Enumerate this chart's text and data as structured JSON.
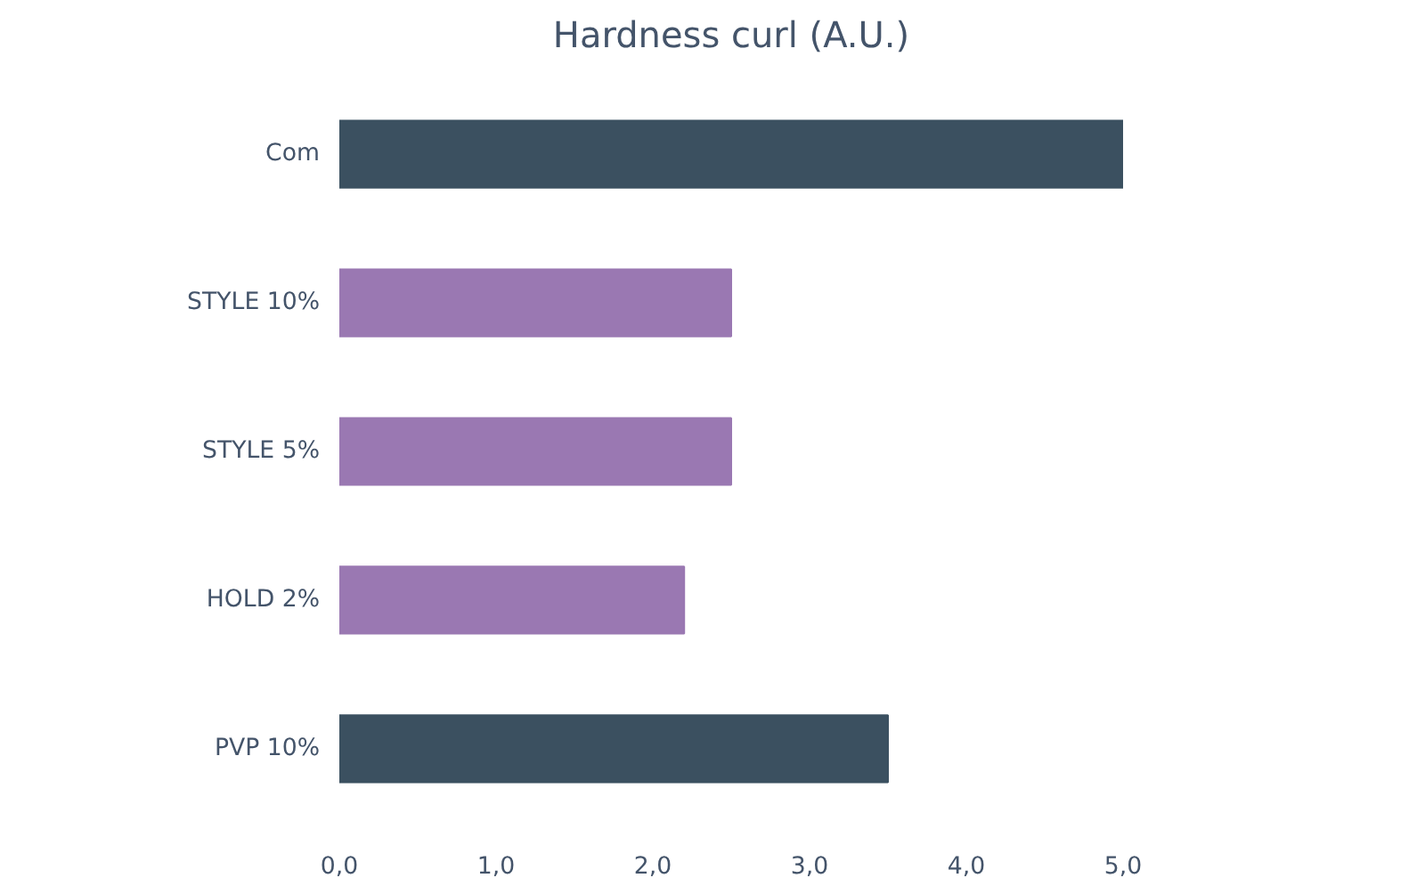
{
  "chart_data": {
    "type": "bar",
    "orientation": "horizontal",
    "title": "Hardness curl (A.U.)",
    "categories": [
      "Com",
      "STYLE 10%",
      "STYLE 5%",
      "HOLD 2%",
      "PVP 10%"
    ],
    "values": [
      5.0,
      2.5,
      2.5,
      2.2,
      3.5
    ],
    "colors": [
      "#3b5060",
      "#9a78b2",
      "#9a78b2",
      "#9a78b2",
      "#3b5060"
    ],
    "xlim": [
      0,
      5
    ],
    "xticks": [
      {
        "value": 0,
        "label": "0,0"
      },
      {
        "value": 1,
        "label": "1,0"
      },
      {
        "value": 2,
        "label": "2,0"
      },
      {
        "value": 3,
        "label": "3,0"
      },
      {
        "value": 4,
        "label": "4,0"
      },
      {
        "value": 5,
        "label": "5,0"
      }
    ],
    "grid": false
  }
}
